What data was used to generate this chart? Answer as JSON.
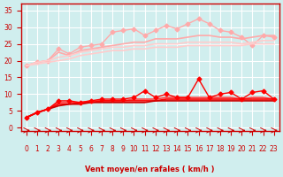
{
  "x": [
    0,
    1,
    2,
    3,
    4,
    5,
    6,
    7,
    8,
    9,
    10,
    11,
    12,
    13,
    14,
    15,
    16,
    17,
    18,
    19,
    20,
    21,
    22,
    23
  ],
  "line1_color": "#ffaaaa",
  "line1_y": [
    18.5,
    19.5,
    20.0,
    23.5,
    22.0,
    24.0,
    24.5,
    25.0,
    28.5,
    29.0,
    29.5,
    27.5,
    29.0,
    30.5,
    29.5,
    31.0,
    32.5,
    31.0,
    29.0,
    28.5,
    27.0,
    24.5,
    27.5,
    27.0
  ],
  "line2_color": "#ffaaaa",
  "line2_y": [
    18.5,
    19.5,
    20.0,
    22.5,
    21.5,
    23.0,
    23.5,
    24.0,
    24.5,
    25.0,
    25.5,
    25.5,
    26.5,
    26.5,
    26.5,
    27.0,
    27.5,
    27.5,
    27.0,
    27.0,
    26.5,
    27.0,
    27.5,
    27.5
  ],
  "line3_color": "#ffcccc",
  "line3_y": [
    18.5,
    19.5,
    20.0,
    21.0,
    21.5,
    22.5,
    23.0,
    23.5,
    24.0,
    24.0,
    24.5,
    24.5,
    25.0,
    25.0,
    25.0,
    25.5,
    25.5,
    25.5,
    25.5,
    25.5,
    25.0,
    25.5,
    26.0,
    26.0
  ],
  "line4_color": "#ffcccc",
  "line4_y": [
    18.5,
    19.0,
    19.5,
    20.0,
    20.5,
    21.5,
    22.0,
    22.5,
    23.0,
    23.0,
    23.5,
    23.5,
    24.0,
    24.0,
    24.0,
    24.5,
    24.5,
    24.5,
    24.5,
    24.5,
    24.5,
    25.0,
    25.0,
    25.0
  ],
  "line5_color": "#ff0000",
  "line5_y": [
    3.0,
    4.5,
    5.5,
    8.0,
    8.0,
    7.5,
    8.0,
    8.5,
    8.5,
    8.5,
    9.0,
    11.0,
    9.0,
    10.0,
    9.0,
    9.0,
    14.5,
    9.0,
    10.0,
    10.5,
    8.5,
    10.5,
    11.0,
    8.5
  ],
  "line6_color": "#ff4444",
  "line6_y": [
    3.0,
    4.5,
    5.5,
    7.5,
    7.5,
    7.5,
    8.0,
    8.0,
    8.0,
    8.0,
    8.5,
    8.5,
    8.5,
    9.0,
    9.0,
    9.0,
    9.0,
    9.0,
    9.0,
    9.0,
    8.5,
    9.0,
    9.0,
    8.5
  ],
  "line7_color": "#ff0000",
  "line7_y": [
    3.0,
    4.5,
    5.5,
    7.0,
    7.0,
    7.5,
    7.5,
    8.0,
    8.0,
    8.0,
    8.0,
    8.0,
    8.0,
    8.5,
    8.5,
    8.5,
    8.5,
    8.5,
    8.5,
    8.5,
    8.5,
    8.5,
    8.5,
    8.5
  ],
  "line8_color": "#cc0000",
  "line8_y": [
    3.0,
    4.5,
    5.5,
    6.5,
    7.0,
    7.0,
    7.5,
    7.5,
    7.5,
    7.5,
    7.5,
    7.5,
    8.0,
    8.0,
    8.0,
    8.0,
    8.0,
    8.0,
    8.0,
    8.0,
    8.0,
    8.0,
    8.0,
    8.0
  ],
  "bg_color": "#d0eeee",
  "grid_color": "#ffffff",
  "xlabel": "Vent moyen/en rafales ( km/h )",
  "ylim": [
    -1,
    37
  ],
  "xlim": [
    -0.5,
    23.5
  ],
  "yticks": [
    0,
    5,
    10,
    15,
    20,
    25,
    30,
    35
  ],
  "xticks": [
    0,
    1,
    2,
    3,
    4,
    5,
    6,
    7,
    8,
    9,
    10,
    11,
    12,
    13,
    14,
    15,
    16,
    17,
    18,
    19,
    20,
    21,
    22,
    23
  ]
}
